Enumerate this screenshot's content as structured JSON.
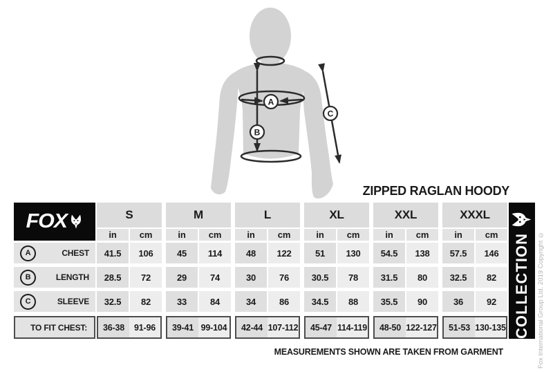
{
  "title": "ZIPPED RAGLAN HOODY",
  "note": "MEASUREMENTS SHOWN ARE TAKEN FROM GARMENT",
  "copyright": "Fox International Group Ltd. 2019 Copyright ©",
  "collection_label": "COLLECTION",
  "brand": {
    "name": "FOX",
    "icon": "fox-head-icon"
  },
  "figure": {
    "labels": [
      "A",
      "B",
      "C"
    ]
  },
  "colors": {
    "silhouette": "#d3d3d3",
    "line": "#2b2b2b",
    "bar_black": "#0a0a0a",
    "cell_header": "#dcdcdc",
    "cell_in": "#dfdfdf",
    "cell_cm": "#ededed",
    "fit_border": "#4d4d4d",
    "copyright_grey": "#b3b3b3"
  },
  "size_chart": {
    "sizes": [
      "S",
      "M",
      "L",
      "XL",
      "XXL",
      "XXXL"
    ],
    "units": [
      "in",
      "cm"
    ],
    "rows": [
      {
        "key": "A",
        "label": "CHEST",
        "values": [
          [
            "41.5",
            "106"
          ],
          [
            "45",
            "114"
          ],
          [
            "48",
            "122"
          ],
          [
            "51",
            "130"
          ],
          [
            "54.5",
            "138"
          ],
          [
            "57.5",
            "146"
          ]
        ]
      },
      {
        "key": "B",
        "label": "LENGTH",
        "values": [
          [
            "28.5",
            "72"
          ],
          [
            "29",
            "74"
          ],
          [
            "30",
            "76"
          ],
          [
            "30.5",
            "78"
          ],
          [
            "31.5",
            "80"
          ],
          [
            "32.5",
            "82"
          ]
        ]
      },
      {
        "key": "C",
        "label": "SLEEVE",
        "values": [
          [
            "32.5",
            "82"
          ],
          [
            "33",
            "84"
          ],
          [
            "34",
            "86"
          ],
          [
            "34.5",
            "88"
          ],
          [
            "35.5",
            "90"
          ],
          [
            "36",
            "92"
          ]
        ]
      }
    ],
    "fit_row": {
      "label": "TO FIT CHEST:",
      "values": [
        [
          "36-38",
          "91-96"
        ],
        [
          "39-41",
          "99-104"
        ],
        [
          "42-44",
          "107-112"
        ],
        [
          "45-47",
          "114-119"
        ],
        [
          "48-50",
          "122-127"
        ],
        [
          "51-53",
          "130-135"
        ]
      ]
    }
  }
}
